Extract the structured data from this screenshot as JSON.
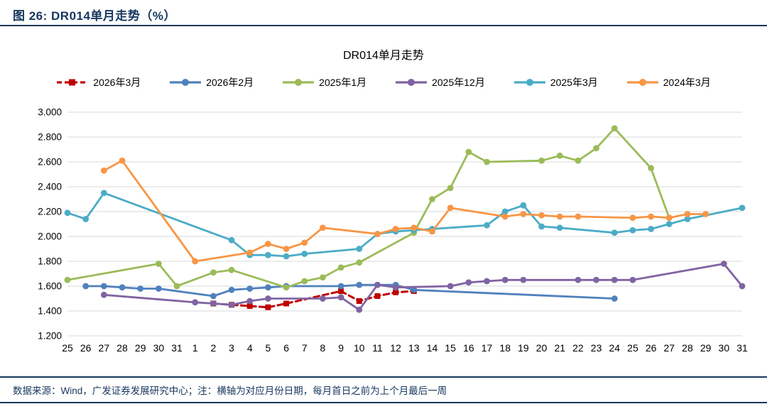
{
  "page": {
    "figure_label": "图 26: DR014单月走势（%）",
    "source_note": "数据来源：Wind，广发证券发展研究中心；注：横轴为对应月份日期，每月首日之前为上个月最后一周"
  },
  "colors": {
    "navy": "#17375E",
    "grid": "#D9D9D9",
    "text": "#000000"
  },
  "chart_data": {
    "type": "line",
    "title": "DR014单月走势",
    "categories": [
      "25",
      "26",
      "27",
      "28",
      "29",
      "30",
      "31",
      "1",
      "2",
      "3",
      "4",
      "5",
      "6",
      "7",
      "8",
      "9",
      "10",
      "11",
      "12",
      "13",
      "14",
      "15",
      "16",
      "17",
      "18",
      "19",
      "20",
      "21",
      "22",
      "23",
      "24",
      "25",
      "26",
      "27",
      "28",
      "29",
      "30",
      "31"
    ],
    "x_note": "day of month; ticks before 1 are last week of previous month",
    "y_axis": {
      "min": 1.2,
      "max": 3.0,
      "step": 0.2,
      "tick_format": "0.000"
    },
    "grid": true,
    "legend_position": "top",
    "series": [
      {
        "name": "2026年3月",
        "color": "#C00000",
        "dashed": true,
        "marker": "square",
        "points": [
          [
            8,
            1.46
          ],
          [
            9,
            1.45
          ],
          [
            10,
            1.44
          ],
          [
            11,
            1.43
          ],
          [
            12,
            1.46
          ],
          [
            15,
            1.56
          ],
          [
            16,
            1.48
          ],
          [
            17,
            1.52
          ],
          [
            18,
            1.55
          ],
          [
            19,
            1.56
          ]
        ]
      },
      {
        "name": "2026年2月",
        "color": "#4F81BD",
        "dashed": false,
        "marker": "circle",
        "points": [
          [
            1,
            1.6
          ],
          [
            2,
            1.6
          ],
          [
            3,
            1.59
          ],
          [
            4,
            1.58
          ],
          [
            5,
            1.58
          ],
          [
            8,
            1.52
          ],
          [
            9,
            1.57
          ],
          [
            10,
            1.58
          ],
          [
            11,
            1.59
          ],
          [
            12,
            1.6
          ],
          [
            15,
            1.6
          ],
          [
            16,
            1.61
          ],
          [
            17,
            1.61
          ],
          [
            18,
            1.61
          ],
          [
            19,
            1.57
          ],
          [
            30,
            1.5
          ]
        ]
      },
      {
        "name": "2025年1月",
        "color": "#9BBB59",
        "dashed": false,
        "marker": "circle",
        "points": [
          [
            0,
            1.65
          ],
          [
            5,
            1.78
          ],
          [
            6,
            1.6
          ],
          [
            8,
            1.71
          ],
          [
            9,
            1.73
          ],
          [
            12,
            1.59
          ],
          [
            13,
            1.64
          ],
          [
            14,
            1.67
          ],
          [
            15,
            1.75
          ],
          [
            16,
            1.79
          ],
          [
            19,
            2.03
          ],
          [
            20,
            2.3
          ],
          [
            21,
            2.39
          ],
          [
            22,
            2.68
          ],
          [
            23,
            2.6
          ],
          [
            26,
            2.61
          ],
          [
            27,
            2.65
          ],
          [
            28,
            2.61
          ],
          [
            29,
            2.71
          ],
          [
            30,
            2.87
          ],
          [
            32,
            2.55
          ],
          [
            33,
            2.15
          ]
        ]
      },
      {
        "name": "2025年12月",
        "color": "#8064A2",
        "dashed": false,
        "marker": "circle",
        "points": [
          [
            2,
            1.53
          ],
          [
            7,
            1.47
          ],
          [
            8,
            1.46
          ],
          [
            9,
            1.45
          ],
          [
            10,
            1.48
          ],
          [
            11,
            1.5
          ],
          [
            14,
            1.5
          ],
          [
            15,
            1.51
          ],
          [
            16,
            1.41
          ],
          [
            17,
            1.61
          ],
          [
            18,
            1.59
          ],
          [
            21,
            1.6
          ],
          [
            22,
            1.63
          ],
          [
            23,
            1.64
          ],
          [
            24,
            1.65
          ],
          [
            25,
            1.65
          ],
          [
            28,
            1.65
          ],
          [
            29,
            1.65
          ],
          [
            30,
            1.65
          ],
          [
            31,
            1.65
          ],
          [
            36,
            1.78
          ],
          [
            37,
            1.6
          ]
        ]
      },
      {
        "name": "2025年3月",
        "color": "#4BACC6",
        "dashed": false,
        "marker": "circle",
        "points": [
          [
            0,
            2.19
          ],
          [
            1,
            2.14
          ],
          [
            2,
            2.35
          ],
          [
            9,
            1.97
          ],
          [
            10,
            1.85
          ],
          [
            11,
            1.85
          ],
          [
            12,
            1.84
          ],
          [
            13,
            1.86
          ],
          [
            16,
            1.9
          ],
          [
            17,
            2.02
          ],
          [
            18,
            2.04
          ],
          [
            19,
            2.05
          ],
          [
            20,
            2.06
          ],
          [
            23,
            2.09
          ],
          [
            24,
            2.2
          ],
          [
            25,
            2.25
          ],
          [
            26,
            2.08
          ],
          [
            27,
            2.07
          ],
          [
            30,
            2.03
          ],
          [
            31,
            2.05
          ],
          [
            32,
            2.06
          ],
          [
            33,
            2.1
          ],
          [
            34,
            2.14
          ],
          [
            37,
            2.23
          ]
        ]
      },
      {
        "name": "2024年3月",
        "color": "#F79646",
        "dashed": false,
        "marker": "circle",
        "points": [
          [
            2,
            2.53
          ],
          [
            3,
            2.61
          ],
          [
            7,
            1.8
          ],
          [
            10,
            1.87
          ],
          [
            11,
            1.94
          ],
          [
            12,
            1.9
          ],
          [
            13,
            1.95
          ],
          [
            14,
            2.07
          ],
          [
            17,
            2.02
          ],
          [
            18,
            2.06
          ],
          [
            19,
            2.07
          ],
          [
            20,
            2.04
          ],
          [
            21,
            2.23
          ],
          [
            24,
            2.16
          ],
          [
            25,
            2.18
          ],
          [
            26,
            2.17
          ],
          [
            27,
            2.16
          ],
          [
            28,
            2.16
          ],
          [
            31,
            2.15
          ],
          [
            32,
            2.16
          ],
          [
            33,
            2.15
          ],
          [
            34,
            2.18
          ],
          [
            35,
            2.18
          ]
        ]
      }
    ]
  }
}
